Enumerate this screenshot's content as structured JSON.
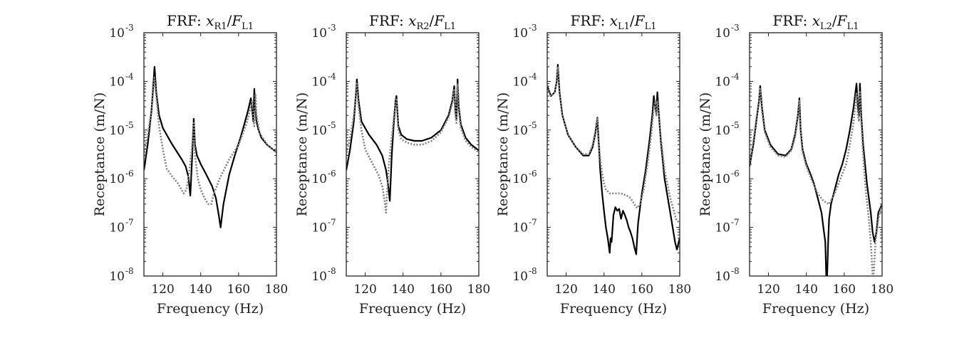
{
  "chart_data": [
    {
      "type": "line",
      "title": "FRF: x_R1/F_L1",
      "title_parts": {
        "prefix": "FRF: ",
        "num": "x",
        "num_sub": "R1",
        "den": "F",
        "den_sub": "L1"
      },
      "xlabel": "Frequency (Hz)",
      "ylabel": "Receptance (m/N)",
      "xlim": [
        110,
        180
      ],
      "ylim": [
        1e-08,
        0.001
      ],
      "yscale": "log",
      "xticks": [
        120,
        140,
        160,
        180
      ],
      "yticks": [
        -8,
        -7,
        -6,
        -5,
        -4,
        -3
      ],
      "grid": false,
      "series": [
        {
          "style": "solid",
          "color": "#000000",
          "x": [
            110,
            112,
            114,
            115,
            115.6,
            116.5,
            118,
            120,
            125,
            130,
            132,
            133.5,
            134.5,
            135.5,
            136.3,
            137,
            138,
            140,
            143,
            146,
            148,
            149.5,
            150.5,
            152,
            155,
            158,
            161,
            163,
            165,
            166.5,
            167.2,
            167.8,
            168.3,
            168.9,
            169.5,
            170.5,
            172,
            175,
            180
          ],
          "y": [
            1.5e-06,
            5e-06,
            2.5e-05,
            9e-05,
            0.0002,
            6e-05,
            2e-05,
            1.1e-05,
            5e-06,
            2.5e-06,
            1.8e-06,
            1.1e-06,
            4.5e-07,
            3e-06,
            1.7e-05,
            5e-06,
            3e-06,
            2e-06,
            1.2e-06,
            7e-07,
            4e-07,
            1.8e-07,
            1e-07,
            3e-07,
            1.2e-06,
            3e-06,
            7e-06,
            1.3e-05,
            2.5e-05,
            4.5e-05,
            2.5e-05,
            1.5e-05,
            7e-05,
            2.5e-05,
            1.5e-05,
            1e-05,
            7e-06,
            5e-06,
            3.5e-06
          ]
        },
        {
          "style": "dotted",
          "color": "#808080",
          "x": [
            110,
            112,
            114,
            115,
            115.6,
            116.5,
            118,
            120,
            122,
            125,
            128,
            131,
            132.5,
            134,
            135.5,
            136.3,
            137,
            138.5,
            140,
            142,
            144,
            145.5,
            147,
            150,
            155,
            160,
            164,
            166,
            167,
            167.8,
            168.3,
            168.9,
            169.5,
            171,
            175,
            180
          ],
          "y": [
            3e-06,
            8e-06,
            2.5e-05,
            7e-05,
            0.00012,
            5e-05,
            1.2e-05,
            4e-06,
            1.6e-06,
            1.1e-06,
            8e-07,
            5e-07,
            6e-07,
            1.5e-06,
            5e-06,
            1.5e-05,
            3e-06,
            1e-06,
            6e-07,
            4e-07,
            3e-07,
            3e-07,
            5e-07,
            1e-06,
            2.5e-06,
            5e-06,
            1.3e-05,
            2.5e-05,
            4e-05,
            2e-05,
            1.2e-05,
            5.5e-05,
            2e-05,
            9e-06,
            5e-06,
            3.5e-06
          ]
        }
      ]
    },
    {
      "type": "line",
      "title": "FRF: x_R2/F_L1",
      "title_parts": {
        "prefix": "FRF: ",
        "num": "x",
        "num_sub": "R2",
        "den": "F",
        "den_sub": "L1"
      },
      "xlabel": "Frequency (Hz)",
      "ylabel": "Receptance (m/N)",
      "xlim": [
        110,
        180
      ],
      "ylim": [
        1e-08,
        0.001
      ],
      "yscale": "log",
      "xticks": [
        120,
        140,
        160,
        180
      ],
      "yticks": [
        -8,
        -7,
        -6,
        -5,
        -4,
        -3
      ],
      "grid": false,
      "series": [
        {
          "style": "solid",
          "color": "#000000",
          "x": [
            110,
            112,
            114,
            115,
            115.6,
            116.5,
            118,
            122,
            126,
            129,
            131,
            132,
            133,
            134,
            135,
            136,
            136.5,
            137.5,
            139,
            142,
            146,
            150,
            155,
            160,
            164,
            166,
            167,
            167.6,
            168.2,
            168.8,
            169.4,
            170.5,
            173,
            176,
            180
          ],
          "y": [
            1.5e-06,
            4e-06,
            1.5e-05,
            5e-05,
            0.00011,
            4e-05,
            1.5e-05,
            8e-06,
            5e-06,
            3e-06,
            1.5e-06,
            8e-07,
            3.5e-07,
            3e-06,
            1.2e-05,
            4e-05,
            5e-05,
            1.2e-05,
            8e-06,
            6.5e-06,
            6e-06,
            6e-06,
            7e-06,
            1e-05,
            2e-05,
            4e-05,
            8e-05,
            2.5e-05,
            1.7e-05,
            0.00011,
            3e-05,
            1.3e-05,
            7e-06,
            5e-06,
            3.8e-06
          ]
        },
        {
          "style": "dotted",
          "color": "#808080",
          "x": [
            110,
            112,
            114,
            115,
            115.6,
            116.5,
            118,
            120,
            124,
            127,
            129,
            130.5,
            131,
            131.5,
            132.5,
            134,
            135.5,
            136.5,
            137.5,
            139,
            142,
            146,
            150,
            155,
            160,
            164,
            166,
            167,
            167.6,
            168.2,
            168.8,
            169.4,
            170.5,
            173,
            176,
            180
          ],
          "y": [
            3e-06,
            7e-06,
            2e-05,
            5e-05,
            9e-05,
            3e-05,
            1e-05,
            4e-06,
            2e-06,
            1.2e-06,
            7e-07,
            3e-07,
            2e-07,
            5e-07,
            2e-06,
            7e-06,
            2.5e-05,
            4.5e-05,
            1e-05,
            6.5e-06,
            5.5e-06,
            5e-06,
            5e-06,
            6e-06,
            9e-06,
            1.8e-05,
            3.5e-05,
            7e-05,
            2e-05,
            1.4e-05,
            9e-05,
            2.5e-05,
            1.1e-05,
            6e-06,
            4.5e-06,
            3.5e-06
          ]
        }
      ]
    },
    {
      "type": "line",
      "title": "FRF: x_L1/F_L1",
      "title_parts": {
        "prefix": "FRF: ",
        "num": "x",
        "num_sub": "L1",
        "den": "F",
        "den_sub": "L1"
      },
      "xlabel": "Frequency (Hz)",
      "ylabel": "Receptance (m/N)",
      "xlim": [
        110,
        180
      ],
      "ylim": [
        1e-08,
        0.001
      ],
      "yscale": "log",
      "xticks": [
        120,
        140,
        160,
        180
      ],
      "yticks": [
        -8,
        -7,
        -6,
        -5,
        -4,
        -3
      ],
      "grid": false,
      "series": [
        {
          "style": "solid",
          "color": "#000000",
          "x": [
            110,
            112,
            114,
            115,
            115.6,
            116.5,
            118,
            121,
            125,
            129,
            132,
            134,
            135.5,
            136.5,
            137,
            138,
            139,
            140,
            141,
            142,
            143,
            143.5,
            144,
            145,
            146,
            147,
            148,
            149,
            150,
            151,
            152,
            153,
            154,
            155,
            156,
            157,
            157.5,
            158,
            159,
            160,
            162,
            164,
            165.5,
            166.3,
            167,
            167.6,
            168.2,
            169,
            170,
            172,
            175,
            177.5,
            178.5,
            180
          ],
          "y": [
            8e-05,
            5e-05,
            6e-05,
            0.0001,
            0.00022,
            6e-05,
            2e-05,
            8e-06,
            4.5e-06,
            3e-06,
            3e-06,
            4.5e-06,
            9e-06,
            1.8e-05,
            8e-06,
            1.5e-06,
            5e-07,
            2.2e-07,
            1e-07,
            6e-08,
            3e-08,
            6e-08,
            5e-08,
            1.8e-07,
            2.6e-07,
            2.2e-07,
            2.4e-07,
            1.5e-07,
            2.2e-07,
            1.8e-07,
            1.4e-07,
            1e-07,
            8e-08,
            6e-08,
            4e-08,
            2.8e-08,
            6e-08,
            1.2e-07,
            2.5e-07,
            5e-07,
            1.5e-06,
            6e-06,
            2e-05,
            5e-05,
            3e-05,
            2.2e-05,
            6e-05,
            2e-05,
            6e-06,
            1e-06,
            2e-07,
            5e-08,
            3.5e-08,
            6e-08
          ]
        },
        {
          "style": "dotted",
          "color": "#808080",
          "x": [
            110,
            112,
            114,
            115,
            115.6,
            116.5,
            118,
            121,
            125,
            129,
            132,
            134,
            135.5,
            136.5,
            137,
            138,
            139,
            140,
            141,
            143,
            146,
            149,
            152,
            154,
            156,
            157.5,
            159,
            161,
            163,
            165,
            166.3,
            167,
            167.6,
            168.2,
            169,
            170,
            172,
            175,
            178,
            180
          ],
          "y": [
            8e-05,
            5e-05,
            6e-05,
            0.0001,
            0.0002,
            6e-05,
            2e-05,
            8e-06,
            4.5e-06,
            3.2e-06,
            3.2e-06,
            5e-06,
            1e-05,
            1.7e-05,
            7e-06,
            2.5e-06,
            1.3e-06,
            8e-07,
            6e-07,
            5e-07,
            5e-07,
            5e-07,
            4.5e-07,
            4e-07,
            3e-07,
            2.5e-07,
            3e-07,
            6e-07,
            2e-06,
            8e-06,
            3e-05,
            4e-05,
            2e-05,
            4e-05,
            2e-05,
            7e-06,
            1.5e-06,
            4e-07,
            1.5e-07,
            1.2e-07
          ]
        }
      ]
    },
    {
      "type": "line",
      "title": "FRF: x_L2/F_L1",
      "title_parts": {
        "prefix": "FRF: ",
        "num": "x",
        "num_sub": "L2",
        "den": "F",
        "den_sub": "L1"
      },
      "xlabel": "Frequency (Hz)",
      "ylabel": "Receptance (m/N)",
      "xlim": [
        110,
        180
      ],
      "ylim": [
        1e-08,
        0.001
      ],
      "yscale": "log",
      "xticks": [
        120,
        140,
        160,
        180
      ],
      "yticks": [
        -8,
        -7,
        -6,
        -5,
        -4,
        -3
      ],
      "grid": false,
      "series": [
        {
          "style": "solid",
          "color": "#000000",
          "x": [
            110,
            112,
            114,
            115,
            115.6,
            116.5,
            118,
            121,
            125,
            129,
            132,
            134,
            135.5,
            136.3,
            137,
            138,
            140,
            142,
            144,
            146,
            148,
            149,
            150,
            150.5,
            151,
            151.5,
            152,
            153,
            155,
            157,
            159,
            161,
            163,
            165,
            166.5,
            167.2,
            167.8,
            168.3,
            169,
            170,
            172,
            174,
            175,
            176,
            177,
            178,
            180
          ],
          "y": [
            1.8e-06,
            5e-06,
            2e-05,
            4e-05,
            8e-05,
            3e-05,
            1e-05,
            5e-06,
            3.2e-06,
            3e-06,
            4e-06,
            8e-06,
            2e-05,
            4.5e-05,
            1e-05,
            4e-06,
            2e-06,
            1.3e-06,
            8e-07,
            4e-07,
            2e-07,
            1e-07,
            5e-08,
            1e-08,
            1e-08,
            5e-08,
            1.5e-07,
            3e-07,
            6e-07,
            1.2e-06,
            2e-06,
            4e-06,
            1e-05,
            3e-05,
            9e-05,
            3e-05,
            2e-05,
            9e-05,
            2e-05,
            5e-06,
            8e-07,
            2e-07,
            8e-08,
            5e-08,
            8e-08,
            2e-07,
            3e-07
          ]
        },
        {
          "style": "dotted",
          "color": "#808080",
          "x": [
            110,
            112,
            114,
            115,
            115.6,
            116.5,
            118,
            121,
            125,
            129,
            132,
            134,
            135.5,
            136.3,
            137,
            138,
            140,
            143,
            146,
            149,
            152,
            155,
            158,
            161,
            163,
            165,
            166.5,
            167.2,
            167.8,
            168.3,
            169,
            170,
            171.5,
            173,
            174,
            174.6,
            175,
            175.5,
            176.5,
            178,
            180
          ],
          "y": [
            2e-06,
            6e-06,
            2.2e-05,
            4e-05,
            7e-05,
            2.5e-05,
            9e-06,
            4.5e-06,
            3e-06,
            2.8e-06,
            3.8e-06,
            7e-06,
            1.8e-05,
            4e-05,
            9e-06,
            3.5e-06,
            1.8e-06,
            9e-07,
            5e-07,
            3.5e-07,
            3e-07,
            5e-07,
            1e-06,
            2e-06,
            5e-06,
            1.5e-05,
            6e-05,
            2e-05,
            1.5e-05,
            6e-05,
            1.5e-05,
            3e-06,
            5e-07,
            1.5e-07,
            5e-08,
            2e-08,
            1e-08,
            1e-08,
            5e-08,
            1.5e-07,
            3e-07
          ]
        }
      ]
    }
  ]
}
